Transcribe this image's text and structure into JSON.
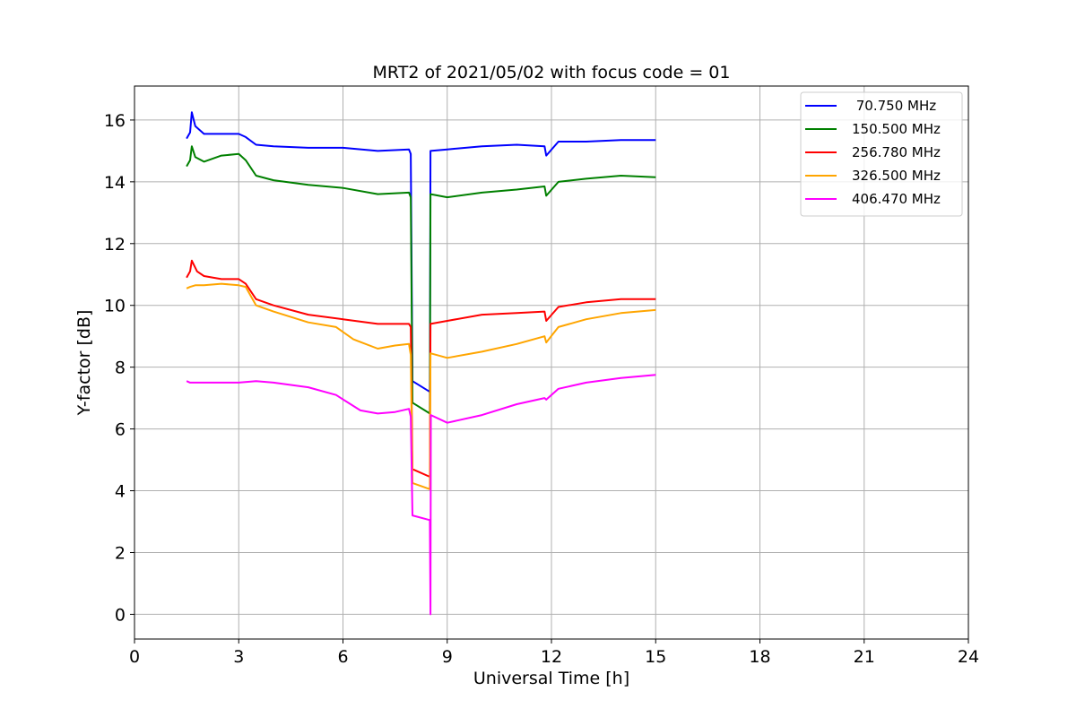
{
  "chart_data": {
    "type": "line",
    "title": "MRT2 of 2021/05/02 with focus code = 01",
    "xlabel": "Universal Time [h]",
    "ylabel": "Y-factor [dB]",
    "xlim": [
      0,
      24
    ],
    "ylim": [
      -0.8,
      17.1
    ],
    "x_ticks": [
      0,
      3,
      6,
      9,
      12,
      15,
      18,
      21,
      24
    ],
    "y_ticks": [
      0,
      2,
      4,
      6,
      8,
      10,
      12,
      14,
      16
    ],
    "grid": true,
    "legend_position": "top-right",
    "series": [
      {
        "name": " 70.750 MHz",
        "color": "#0000ff",
        "points": [
          [
            1.5,
            15.4
          ],
          [
            1.6,
            15.6
          ],
          [
            1.65,
            16.25
          ],
          [
            1.75,
            15.8
          ],
          [
            2.0,
            15.55
          ],
          [
            2.5,
            15.55
          ],
          [
            3.0,
            15.55
          ],
          [
            3.2,
            15.45
          ],
          [
            3.5,
            15.2
          ],
          [
            4.0,
            15.15
          ],
          [
            5.0,
            15.1
          ],
          [
            6.0,
            15.1
          ],
          [
            7.0,
            15.0
          ],
          [
            7.9,
            15.05
          ],
          [
            7.95,
            14.9
          ],
          [
            8.0,
            7.55
          ],
          [
            8.5,
            7.2
          ],
          [
            8.52,
            15.0
          ],
          [
            9.0,
            15.05
          ],
          [
            10.0,
            15.15
          ],
          [
            11.0,
            15.2
          ],
          [
            11.8,
            15.15
          ],
          [
            11.85,
            14.85
          ],
          [
            12.2,
            15.3
          ],
          [
            13.0,
            15.3
          ],
          [
            14.0,
            15.35
          ],
          [
            15.0,
            15.35
          ]
        ]
      },
      {
        "name": "150.500 MHz",
        "color": "#008000",
        "points": [
          [
            1.5,
            14.5
          ],
          [
            1.6,
            14.7
          ],
          [
            1.65,
            15.15
          ],
          [
            1.75,
            14.8
          ],
          [
            2.0,
            14.65
          ],
          [
            2.5,
            14.85
          ],
          [
            3.0,
            14.9
          ],
          [
            3.2,
            14.7
          ],
          [
            3.5,
            14.2
          ],
          [
            4.0,
            14.05
          ],
          [
            5.0,
            13.9
          ],
          [
            6.0,
            13.8
          ],
          [
            7.0,
            13.6
          ],
          [
            7.9,
            13.65
          ],
          [
            7.95,
            13.5
          ],
          [
            8.0,
            6.85
          ],
          [
            8.5,
            6.5
          ],
          [
            8.52,
            13.6
          ],
          [
            9.0,
            13.5
          ],
          [
            10.0,
            13.65
          ],
          [
            11.0,
            13.75
          ],
          [
            11.8,
            13.85
          ],
          [
            11.85,
            13.55
          ],
          [
            12.2,
            14.0
          ],
          [
            13.0,
            14.1
          ],
          [
            14.0,
            14.2
          ],
          [
            15.0,
            14.15
          ]
        ]
      },
      {
        "name": "256.780 MHz",
        "color": "#ff0000",
        "points": [
          [
            1.5,
            10.9
          ],
          [
            1.6,
            11.1
          ],
          [
            1.65,
            11.45
          ],
          [
            1.8,
            11.1
          ],
          [
            2.0,
            10.95
          ],
          [
            2.5,
            10.85
          ],
          [
            3.0,
            10.85
          ],
          [
            3.2,
            10.7
          ],
          [
            3.5,
            10.2
          ],
          [
            4.0,
            10.0
          ],
          [
            5.0,
            9.7
          ],
          [
            6.0,
            9.55
          ],
          [
            7.0,
            9.4
          ],
          [
            7.9,
            9.4
          ],
          [
            7.95,
            9.3
          ],
          [
            8.0,
            4.7
          ],
          [
            8.5,
            4.45
          ],
          [
            8.52,
            9.4
          ],
          [
            9.0,
            9.5
          ],
          [
            10.0,
            9.7
          ],
          [
            11.0,
            9.75
          ],
          [
            11.8,
            9.8
          ],
          [
            11.85,
            9.5
          ],
          [
            12.2,
            9.95
          ],
          [
            13.0,
            10.1
          ],
          [
            14.0,
            10.2
          ],
          [
            15.0,
            10.2
          ]
        ]
      },
      {
        "name": "326.500 MHz",
        "color": "#ffa500",
        "points": [
          [
            1.5,
            10.55
          ],
          [
            1.6,
            10.6
          ],
          [
            1.75,
            10.65
          ],
          [
            2.0,
            10.65
          ],
          [
            2.5,
            10.7
          ],
          [
            3.0,
            10.65
          ],
          [
            3.2,
            10.6
          ],
          [
            3.5,
            10.0
          ],
          [
            4.0,
            9.8
          ],
          [
            5.0,
            9.45
          ],
          [
            5.8,
            9.3
          ],
          [
            6.3,
            8.9
          ],
          [
            7.0,
            8.6
          ],
          [
            7.5,
            8.7
          ],
          [
            7.9,
            8.75
          ],
          [
            7.95,
            8.4
          ],
          [
            8.0,
            4.25
          ],
          [
            8.5,
            4.05
          ],
          [
            8.52,
            8.45
          ],
          [
            9.0,
            8.3
          ],
          [
            10.0,
            8.5
          ],
          [
            11.0,
            8.75
          ],
          [
            11.8,
            9.0
          ],
          [
            11.85,
            8.8
          ],
          [
            12.2,
            9.3
          ],
          [
            13.0,
            9.55
          ],
          [
            14.0,
            9.75
          ],
          [
            15.0,
            9.85
          ]
        ]
      },
      {
        "name": "406.470 MHz",
        "color": "#ff00ff",
        "points": [
          [
            1.5,
            7.55
          ],
          [
            1.6,
            7.5
          ],
          [
            2.0,
            7.5
          ],
          [
            3.0,
            7.5
          ],
          [
            3.5,
            7.55
          ],
          [
            4.0,
            7.5
          ],
          [
            5.0,
            7.35
          ],
          [
            5.8,
            7.1
          ],
          [
            6.5,
            6.6
          ],
          [
            7.0,
            6.5
          ],
          [
            7.5,
            6.55
          ],
          [
            7.9,
            6.65
          ],
          [
            7.95,
            6.4
          ],
          [
            8.0,
            3.2
          ],
          [
            8.5,
            3.05
          ],
          [
            8.52,
            0.0
          ],
          [
            8.53,
            6.45
          ],
          [
            9.0,
            6.2
          ],
          [
            10.0,
            6.45
          ],
          [
            11.0,
            6.8
          ],
          [
            11.8,
            7.0
          ],
          [
            11.85,
            6.95
          ],
          [
            12.2,
            7.3
          ],
          [
            13.0,
            7.5
          ],
          [
            14.0,
            7.65
          ],
          [
            15.0,
            7.75
          ]
        ]
      }
    ]
  }
}
